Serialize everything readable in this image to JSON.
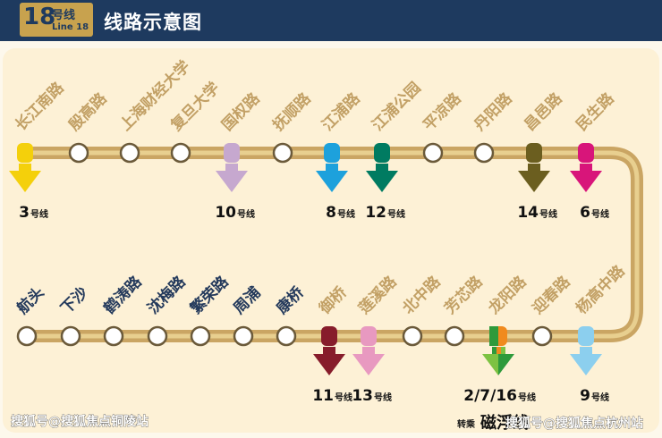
{
  "header": {
    "line_number": "18",
    "line_label_zh": "号线",
    "line_label_en": "Line 18",
    "title": "线路示意图"
  },
  "route": {
    "top_stations": [
      {
        "name": "长江南路",
        "transfer": "3",
        "color": "#f4d00b"
      },
      {
        "name": "殷高路"
      },
      {
        "name": "上海财经大学"
      },
      {
        "name": "复旦大学"
      },
      {
        "name": "国权路",
        "transfer": "10",
        "color": "#c6a8cf"
      },
      {
        "name": "抚顺路"
      },
      {
        "name": "江浦路",
        "transfer": "8",
        "color": "#1da1dc"
      },
      {
        "name": "江浦公园",
        "transfer": "12",
        "color": "#007b61"
      },
      {
        "name": "平凉路"
      },
      {
        "name": "丹阳路"
      },
      {
        "name": "昌邑路",
        "transfer": "14",
        "color": "#6b5e1f"
      },
      {
        "name": "民生路",
        "transfer": "6",
        "color": "#d8157a"
      }
    ],
    "bottom_stations": [
      {
        "name": "航头"
      },
      {
        "name": "下沙"
      },
      {
        "name": "鹤涛路"
      },
      {
        "name": "沈梅路"
      },
      {
        "name": "繁荣路"
      },
      {
        "name": "周浦"
      },
      {
        "name": "康桥"
      },
      {
        "name": "御桥",
        "transfer": "11",
        "color": "#871c2b"
      },
      {
        "name": "莲溪路",
        "transfer": "13",
        "color": "#e899c0"
      },
      {
        "name": "北中路"
      },
      {
        "name": "芳芯路"
      },
      {
        "name": "龙阳路",
        "transfer": "2/7/16",
        "multi": true
      },
      {
        "name": "迎春路"
      },
      {
        "name": "杨高中路",
        "transfer": "9",
        "color": "#8ccfee"
      }
    ],
    "transfer_suffix": "号线",
    "cixi_prefix": "转乘",
    "cixi": "磁浮线",
    "colors": {
      "track": "#caa563",
      "track_light": "#e8cf8f",
      "multi": [
        "#2e9a3b",
        "#f08a1e",
        "#7dc242"
      ]
    }
  },
  "watermarks": {
    "left": "搜狐号@搜狐焦点铜陵站",
    "right": "搜狐号@搜狐焦点杭州站"
  }
}
